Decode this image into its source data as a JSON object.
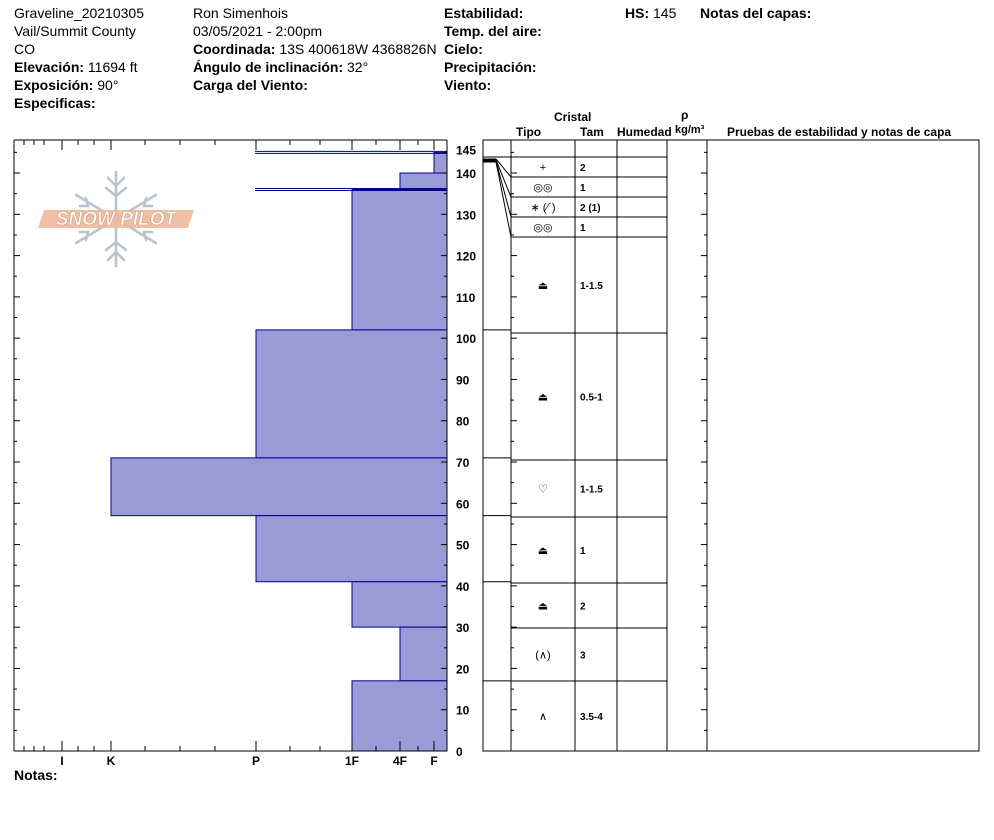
{
  "header": {
    "col1": {
      "line1": "Graveline_20210305",
      "line2": "Vail/Summit County",
      "line3": "CO",
      "elev_label": "Elevación:",
      "elev_value": "11694 ft",
      "exp_label": "Exposición:",
      "exp_value": "90°",
      "spec_label": "Especificas:"
    },
    "col2": {
      "observer": "Ron Simenhois",
      "datetime": "03/05/2021 - 2:00pm",
      "coord_label": "Coordinada:",
      "coord_value": "13S 400618W 4368826N",
      "slope_label": "Ángulo de inclinación:",
      "slope_value": "32°",
      "wind_load_label": "Carga del Viento:"
    },
    "col3": {
      "stability_label": "Estabilidad:",
      "air_temp_label": "Temp. del aire:",
      "sky_label": "Cielo:",
      "precip_label": "Precipitación:",
      "wind_label": "Viento:"
    },
    "hs_label": "HS:",
    "hs_value": "145",
    "layer_notes_label": "Notas del capas:"
  },
  "logo_text": "SNOW PILOT",
  "notes_label": "Notas:",
  "table_headers": {
    "crystal": "Cristal",
    "type": "Tipo",
    "size": "Tam",
    "moisture": "Humedad",
    "rho": "ρ",
    "density_unit": "kg/m³",
    "tests": "Pruebas de estabilidad y notas de capa"
  },
  "chart_data": {
    "type": "bar",
    "orientation": "horizontal",
    "title": "",
    "y_axis": {
      "min": 0,
      "max": 148,
      "ticks": [
        0,
        10,
        20,
        30,
        40,
        50,
        60,
        70,
        80,
        90,
        100,
        110,
        120,
        130,
        140,
        145
      ]
    },
    "x_axis": {
      "categories": [
        "I",
        "K",
        "P",
        "1F",
        "4F",
        "F"
      ],
      "reversed": true
    },
    "hardness_layers": [
      {
        "bottom": 140,
        "top": 145,
        "hardness": "F"
      },
      {
        "bottom": 136,
        "top": 140,
        "hardness": "4F"
      },
      {
        "bottom": 102,
        "top": 136,
        "hardness": "1F"
      },
      {
        "bottom": 71,
        "top": 102,
        "hardness": "P"
      },
      {
        "bottom": 57,
        "top": 71,
        "hardness": "K"
      },
      {
        "bottom": 41,
        "top": 57,
        "hardness": "P"
      },
      {
        "bottom": 30,
        "top": 41,
        "hardness": "1F"
      },
      {
        "bottom": 17,
        "top": 30,
        "hardness": "4F"
      },
      {
        "bottom": 0,
        "top": 17,
        "hardness": "1F"
      }
    ],
    "layer_boundaries": [
      0,
      17,
      30,
      41,
      57,
      71,
      102,
      126,
      131,
      136,
      140,
      145
    ],
    "crystal_rows": [
      {
        "type": "+",
        "size": "2"
      },
      {
        "type": "◎◎",
        "size": "1"
      },
      {
        "type": "∗ (⁄´)",
        "size": "2 (1)"
      },
      {
        "type": "◎◎",
        "size": "1"
      },
      {
        "type": "⏏",
        "size": "1-1.5"
      },
      {
        "type": "⏏",
        "size": "0.5-1"
      },
      {
        "type": "♡",
        "size": "1-1.5"
      },
      {
        "type": "⏏",
        "size": "1"
      },
      {
        "type": "⏏",
        "size": "2"
      },
      {
        "type": "(∧)",
        "size": "3"
      },
      {
        "type": "∧",
        "size": "3.5-4"
      }
    ]
  },
  "colors": {
    "bar_fill": "#9a9ad6",
    "bar_stroke": "#00008b",
    "logo_orange": "#f0b89a",
    "logo_gray": "#b8c4cc"
  }
}
